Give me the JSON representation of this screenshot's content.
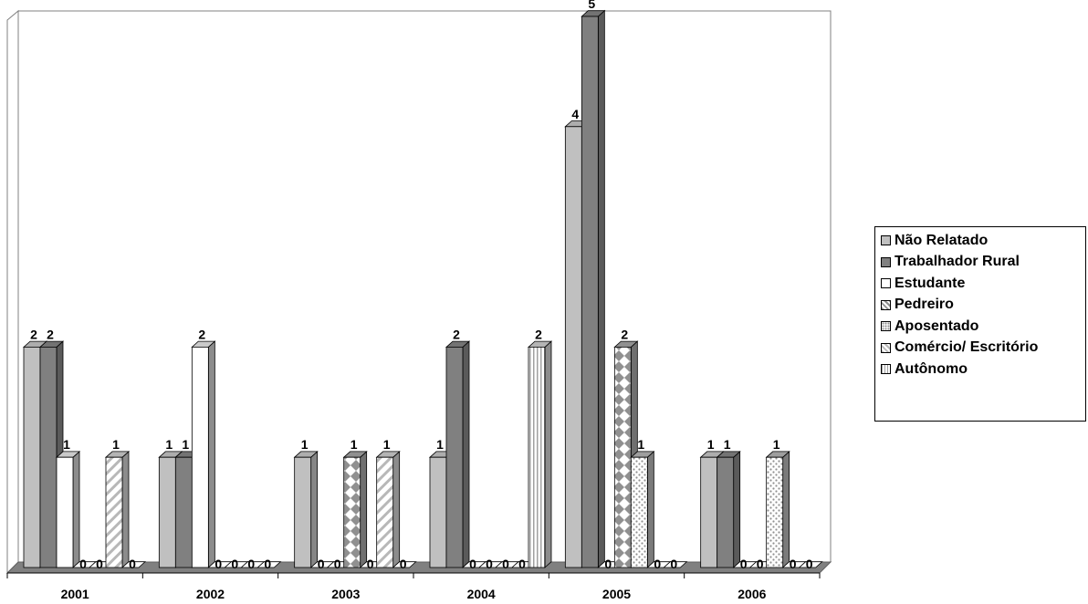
{
  "chart_data": {
    "type": "bar",
    "title": "",
    "xlabel": "",
    "ylabel": "",
    "ylim": [
      0,
      5
    ],
    "grid": false,
    "legend_position": "right",
    "categories": [
      "2001",
      "2002",
      "2003",
      "2004",
      "2005",
      "2006"
    ],
    "series": [
      {
        "name": "Não Relatado",
        "pattern": "solid-light",
        "color": "#c0c0c0",
        "values": [
          2,
          1,
          1,
          1,
          4,
          1
        ]
      },
      {
        "name": "Trabalhador Rural",
        "pattern": "solid-dark",
        "color": "#808080",
        "values": [
          2,
          1,
          0,
          2,
          5,
          1
        ]
      },
      {
        "name": "Estudante",
        "pattern": "white",
        "color": "#ffffff",
        "values": [
          1,
          2,
          0,
          0,
          0,
          0
        ]
      },
      {
        "name": "Pedreiro",
        "pattern": "diamond",
        "color": "#a0a0a0",
        "values": [
          0,
          0,
          1,
          0,
          2,
          0
        ]
      },
      {
        "name": "Aposentado",
        "pattern": "dots",
        "color": "#b0b0b0",
        "values": [
          0,
          0,
          0,
          0,
          1,
          1
        ]
      },
      {
        "name": "Comércio/ Escritório",
        "pattern": "diagonal",
        "color": "#c8c8c8",
        "values": [
          1,
          0,
          1,
          0,
          0,
          0
        ]
      },
      {
        "name": "Autônomo",
        "pattern": "vertical",
        "color": "#c8c8c8",
        "values": [
          0,
          0,
          0,
          2,
          0,
          0
        ]
      }
    ]
  }
}
